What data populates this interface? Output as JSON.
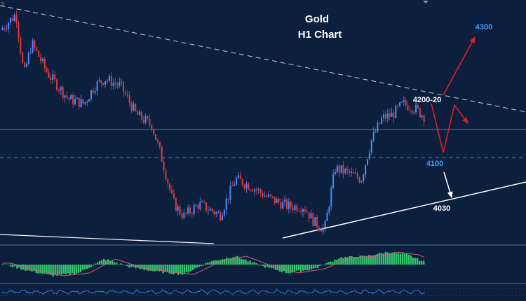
{
  "chart_data": {
    "type": "candlestick",
    "title": "Gold",
    "subtitle": "H1 Chart",
    "corner_tick": "5",
    "levels": {
      "target_up": "4300",
      "resistance": "4200-20",
      "support_1": "4100",
      "support_2": "4030"
    },
    "price_path": [
      [
        0,
        4318
      ],
      [
        0.03,
        4340
      ],
      [
        0.045,
        4255
      ],
      [
        0.06,
        4300
      ],
      [
        0.09,
        4258
      ],
      [
        0.13,
        4222
      ],
      [
        0.16,
        4215
      ],
      [
        0.18,
        4240
      ],
      [
        0.2,
        4250
      ],
      [
        0.23,
        4240
      ],
      [
        0.26,
        4200
      ],
      [
        0.29,
        4185
      ],
      [
        0.31,
        4135
      ],
      [
        0.33,
        4078
      ],
      [
        0.35,
        4058
      ],
      [
        0.38,
        4075
      ],
      [
        0.42,
        4060
      ],
      [
        0.45,
        4110
      ],
      [
        0.48,
        4100
      ],
      [
        0.51,
        4085
      ],
      [
        0.55,
        4072
      ],
      [
        0.58,
        4072
      ],
      [
        0.6,
        4050
      ],
      [
        0.62,
        4040
      ],
      [
        0.64,
        4125
      ],
      [
        0.66,
        4120
      ],
      [
        0.69,
        4110
      ],
      [
        0.71,
        4165
      ],
      [
        0.73,
        4195
      ],
      [
        0.75,
        4200
      ],
      [
        0.77,
        4215
      ],
      [
        0.79,
        4210
      ],
      [
        0.81,
        4198
      ]
    ],
    "macd_hist_path": [
      [
        0,
        0.1
      ],
      [
        0.05,
        -0.4
      ],
      [
        0.1,
        -0.8
      ],
      [
        0.15,
        -0.6
      ],
      [
        0.2,
        0.4
      ],
      [
        0.25,
        -0.2
      ],
      [
        0.3,
        -0.5
      ],
      [
        0.35,
        -0.7
      ],
      [
        0.4,
        0.2
      ],
      [
        0.45,
        0.6
      ],
      [
        0.5,
        -0.1
      ],
      [
        0.55,
        -0.6
      ],
      [
        0.6,
        -0.3
      ],
      [
        0.65,
        0.5
      ],
      [
        0.7,
        0.6
      ],
      [
        0.74,
        0.9
      ],
      [
        0.78,
        0.7
      ],
      [
        0.81,
        0.2
      ]
    ],
    "colors": {
      "background": "#0c1f3c",
      "bull_candle": "#4a8cff",
      "bear_candle": "#e23a3a",
      "macd_hist": "#33c46c",
      "signal_line": "#d65a7a",
      "arrow_up": "#e0202a",
      "arrow_down": "#ffffff",
      "trendline": "#ffffff",
      "support_line": "#2a6fc9",
      "label_blue": "#3aa0ff",
      "label_white": "#ffffff"
    }
  }
}
